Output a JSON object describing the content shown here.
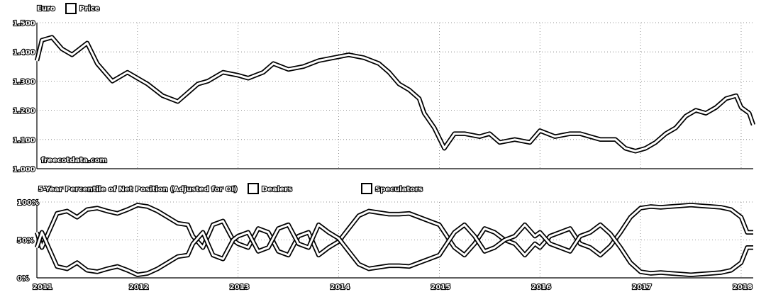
{
  "chart_data": [
    {
      "type": "line",
      "legend": [
        "Euro",
        "Price"
      ],
      "ylim": [
        1.0,
        1.5
      ],
      "yticks": [
        "1.000",
        "1.100",
        "1.200",
        "1.300",
        "1.400",
        "1.500"
      ],
      "watermark": "freecotdata.com",
      "x": [
        2011.0,
        2011.05,
        2011.15,
        2011.25,
        2011.35,
        2011.5,
        2011.6,
        2011.75,
        2011.9,
        2012.0,
        2012.1,
        2012.25,
        2012.4,
        2012.5,
        2012.6,
        2012.7,
        2012.85,
        2013.0,
        2013.1,
        2013.25,
        2013.35,
        2013.5,
        2013.65,
        2013.8,
        2013.95,
        2014.1,
        2014.25,
        2014.4,
        2014.5,
        2014.6,
        2014.7,
        2014.8,
        2014.85,
        2014.95,
        2015.05,
        2015.15,
        2015.25,
        2015.4,
        2015.5,
        2015.6,
        2015.75,
        2015.9,
        2016.0,
        2016.15,
        2016.3,
        2016.4,
        2016.5,
        2016.6,
        2016.75,
        2016.85,
        2016.95,
        2017.05,
        2017.15,
        2017.25,
        2017.35,
        2017.45,
        2017.55,
        2017.65,
        2017.75,
        2017.85,
        2017.95,
        2018.0,
        2018.08,
        2018.12
      ],
      "series": [
        {
          "values": [
            1.37,
            1.44,
            1.45,
            1.41,
            1.39,
            1.43,
            1.36,
            1.3,
            1.33,
            1.31,
            1.29,
            1.25,
            1.23,
            1.26,
            1.29,
            1.3,
            1.33,
            1.32,
            1.31,
            1.33,
            1.36,
            1.34,
            1.35,
            1.37,
            1.38,
            1.39,
            1.38,
            1.36,
            1.33,
            1.29,
            1.27,
            1.24,
            1.19,
            1.14,
            1.07,
            1.12,
            1.12,
            1.11,
            1.12,
            1.09,
            1.1,
            1.09,
            1.13,
            1.11,
            1.12,
            1.12,
            1.11,
            1.1,
            1.1,
            1.07,
            1.06,
            1.07,
            1.09,
            1.12,
            1.14,
            1.18,
            1.2,
            1.19,
            1.21,
            1.24,
            1.25,
            1.21,
            1.19,
            1.15
          ]
        }
      ]
    },
    {
      "type": "line",
      "title": "5-Year Percentile of Net Position (Adjusted for OI)",
      "legend": [
        "Dealers",
        "Speculators"
      ],
      "ylim": [
        0,
        100
      ],
      "yticks": [
        "0%",
        "50%",
        "100%"
      ],
      "xticks": [
        "2011",
        "2012",
        "2013",
        "2014",
        "2015",
        "2016",
        "2017",
        "2018"
      ],
      "x": [
        2011.0,
        2011.05,
        2011.1,
        2011.15,
        2011.2,
        2011.3,
        2011.4,
        2011.5,
        2011.6,
        2011.7,
        2011.8,
        2011.9,
        2012.0,
        2012.1,
        2012.2,
        2012.3,
        2012.4,
        2012.5,
        2012.55,
        2012.65,
        2012.75,
        2012.85,
        2012.95,
        2013.0,
        2013.1,
        2013.2,
        2013.3,
        2013.4,
        2013.5,
        2013.6,
        2013.7,
        2013.75,
        2013.8,
        2013.85,
        2013.9,
        2014.0,
        2014.1,
        2014.2,
        2014.3,
        2014.4,
        2014.5,
        2014.6,
        2014.7,
        2014.8,
        2014.9,
        2015.0,
        2015.05,
        2015.15,
        2015.25,
        2015.35,
        2015.45,
        2015.55,
        2015.65,
        2015.75,
        2015.85,
        2015.95,
        2016.0,
        2016.1,
        2016.2,
        2016.3,
        2016.4,
        2016.5,
        2016.6,
        2016.7,
        2016.8,
        2016.9,
        2017.0,
        2017.1,
        2017.2,
        2017.3,
        2017.4,
        2017.5,
        2017.6,
        2017.7,
        2017.8,
        2017.9,
        2018.0,
        2018.06,
        2018.12
      ],
      "series": [
        {
          "name": "Dealers",
          "values": [
            60,
            40,
            55,
            70,
            85,
            88,
            80,
            90,
            92,
            88,
            85,
            90,
            96,
            94,
            88,
            80,
            72,
            70,
            55,
            40,
            70,
            75,
            50,
            45,
            40,
            65,
            60,
            35,
            30,
            55,
            60,
            45,
            30,
            35,
            40,
            48,
            65,
            82,
            88,
            86,
            84,
            84,
            85,
            80,
            75,
            70,
            60,
            40,
            30,
            45,
            65,
            60,
            50,
            45,
            30,
            45,
            40,
            55,
            60,
            65,
            45,
            40,
            30,
            42,
            60,
            80,
            92,
            94,
            93,
            94,
            95,
            96,
            95,
            94,
            93,
            90,
            80,
            60,
            60
          ]
        },
        {
          "name": "Speculators",
          "values": [
            40,
            60,
            45,
            30,
            15,
            12,
            20,
            10,
            8,
            12,
            15,
            10,
            4,
            6,
            12,
            20,
            28,
            30,
            45,
            60,
            30,
            25,
            50,
            55,
            60,
            35,
            40,
            65,
            70,
            45,
            40,
            55,
            70,
            65,
            60,
            52,
            35,
            18,
            12,
            14,
            16,
            16,
            15,
            20,
            25,
            30,
            40,
            60,
            70,
            55,
            35,
            40,
            50,
            55,
            70,
            55,
            60,
            45,
            40,
            35,
            55,
            60,
            70,
            58,
            40,
            20,
            8,
            6,
            7,
            6,
            5,
            4,
            5,
            6,
            7,
            10,
            20,
            40,
            40
          ]
        }
      ]
    }
  ]
}
